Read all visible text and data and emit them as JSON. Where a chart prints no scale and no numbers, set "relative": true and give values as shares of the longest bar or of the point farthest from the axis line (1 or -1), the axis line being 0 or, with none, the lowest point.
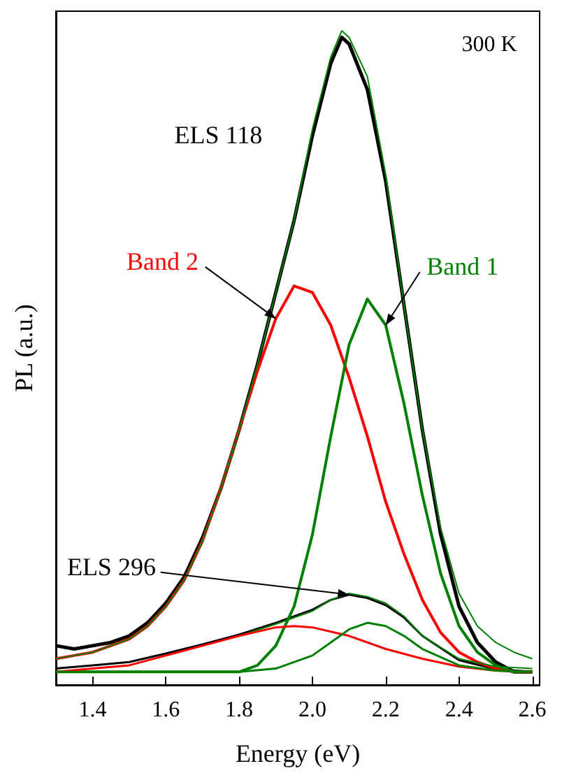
{
  "chart_data": {
    "type": "line",
    "xlabel": "Energy (eV)",
    "ylabel": "PL (a.u.)",
    "relative": true,
    "tick_labels": "x",
    "grid": false,
    "legend": false,
    "marker": "none",
    "line_style": "solid",
    "xlim": [
      1.3,
      2.62
    ],
    "xticks": [
      1.4,
      1.6,
      1.8,
      {
        "value": 2.0,
        "label": "2.0"
      },
      2.2,
      2.4,
      2.6
    ],
    "annotations": [
      "300 K"
    ],
    "series": [
      {
        "name": "ELS 118",
        "color": "#000000",
        "x": [
          1.3,
          1.35,
          1.4,
          1.45,
          1.5,
          1.55,
          1.6,
          1.65,
          1.7,
          1.75,
          1.8,
          1.85,
          1.9,
          1.95,
          2.0,
          2.05,
          2.08,
          2.1,
          2.15,
          2.2,
          2.25,
          2.3,
          2.35,
          2.4,
          2.45,
          2.5,
          2.55,
          2.6
        ],
        "values": [
          0.06,
          0.055,
          0.06,
          0.065,
          0.075,
          0.095,
          0.125,
          0.165,
          0.225,
          0.3,
          0.39,
          0.49,
          0.6,
          0.71,
          0.84,
          0.95,
          0.99,
          0.98,
          0.91,
          0.77,
          0.58,
          0.39,
          0.23,
          0.12,
          0.065,
          0.035,
          0.02,
          0.02
        ]
      },
      {
        "color": "#008000",
        "x": [
          1.3,
          1.35,
          1.4,
          1.45,
          1.5,
          1.55,
          1.6,
          1.65,
          1.7,
          1.75,
          1.8,
          1.85,
          1.9,
          1.95,
          2.0,
          2.05,
          2.08,
          2.1,
          2.15,
          2.2,
          2.25,
          2.3,
          2.35,
          2.4,
          2.45,
          2.5,
          2.55,
          2.6
        ],
        "values": [
          0.04,
          0.045,
          0.05,
          0.06,
          0.07,
          0.09,
          0.12,
          0.16,
          0.22,
          0.3,
          0.39,
          0.49,
          0.6,
          0.71,
          0.85,
          0.96,
          1.0,
          0.99,
          0.93,
          0.78,
          0.58,
          0.39,
          0.24,
          0.14,
          0.09,
          0.065,
          0.05,
          0.04
        ]
      },
      {
        "name": "Band 2",
        "color": "#ff0000",
        "x": [
          1.3,
          1.35,
          1.4,
          1.45,
          1.5,
          1.55,
          1.6,
          1.65,
          1.7,
          1.75,
          1.8,
          1.85,
          1.9,
          1.95,
          2.0,
          2.05,
          2.1,
          2.15,
          2.2,
          2.25,
          2.3,
          2.35,
          2.4,
          2.45,
          2.5,
          2.55,
          2.6
        ],
        "values": [
          0.04,
          0.045,
          0.05,
          0.06,
          0.07,
          0.09,
          0.12,
          0.16,
          0.22,
          0.3,
          0.39,
          0.48,
          0.56,
          0.61,
          0.6,
          0.55,
          0.47,
          0.38,
          0.28,
          0.2,
          0.13,
          0.08,
          0.05,
          0.035,
          0.025,
          0.02,
          0.02
        ]
      },
      {
        "name": "Band 1",
        "color": "#008000",
        "x": [
          1.3,
          1.4,
          1.5,
          1.6,
          1.7,
          1.8,
          1.85,
          1.9,
          1.95,
          2.0,
          2.05,
          2.1,
          2.15,
          2.2,
          2.25,
          2.3,
          2.35,
          2.4,
          2.45,
          2.5,
          2.55,
          2.6
        ],
        "values": [
          0.02,
          0.02,
          0.02,
          0.02,
          0.02,
          0.02,
          0.03,
          0.06,
          0.12,
          0.23,
          0.38,
          0.52,
          0.59,
          0.55,
          0.43,
          0.29,
          0.17,
          0.09,
          0.05,
          0.03,
          0.02,
          0.02
        ]
      },
      {
        "name": "ELS 296",
        "color": "#000000",
        "x": [
          1.3,
          1.4,
          1.5,
          1.6,
          1.7,
          1.8,
          1.9,
          2.0,
          2.05,
          2.1,
          2.15,
          2.2,
          2.25,
          2.3,
          2.4,
          2.5,
          2.6
        ],
        "values": [
          0.025,
          0.03,
          0.035,
          0.048,
          0.062,
          0.077,
          0.095,
          0.115,
          0.13,
          0.138,
          0.133,
          0.122,
          0.103,
          0.075,
          0.038,
          0.024,
          0.02
        ]
      },
      {
        "color": "#008000",
        "x": [
          1.3,
          1.4,
          1.5,
          1.6,
          1.7,
          1.8,
          1.9,
          2.0,
          2.05,
          2.1,
          2.15,
          2.2,
          2.25,
          2.3,
          2.4,
          2.5,
          2.6
        ],
        "values": [
          0.02,
          0.025,
          0.03,
          0.045,
          0.06,
          0.075,
          0.093,
          0.113,
          0.13,
          0.14,
          0.135,
          0.125,
          0.105,
          0.075,
          0.04,
          0.028,
          0.025
        ]
      },
      {
        "color": "#ff0000",
        "x": [
          1.3,
          1.4,
          1.5,
          1.6,
          1.7,
          1.8,
          1.9,
          1.95,
          2.0,
          2.1,
          2.2,
          2.3,
          2.4,
          2.5,
          2.6
        ],
        "values": [
          0.02,
          0.025,
          0.03,
          0.045,
          0.06,
          0.075,
          0.088,
          0.09,
          0.088,
          0.075,
          0.055,
          0.04,
          0.028,
          0.022,
          0.02
        ]
      },
      {
        "color": "#008000",
        "x": [
          1.3,
          1.4,
          1.5,
          1.6,
          1.7,
          1.8,
          1.9,
          2.0,
          2.05,
          2.1,
          2.15,
          2.2,
          2.25,
          2.3,
          2.4,
          2.5,
          2.6
        ],
        "values": [
          0.02,
          0.02,
          0.02,
          0.02,
          0.02,
          0.02,
          0.025,
          0.045,
          0.065,
          0.085,
          0.095,
          0.09,
          0.075,
          0.055,
          0.03,
          0.022,
          0.02
        ]
      }
    ]
  }
}
